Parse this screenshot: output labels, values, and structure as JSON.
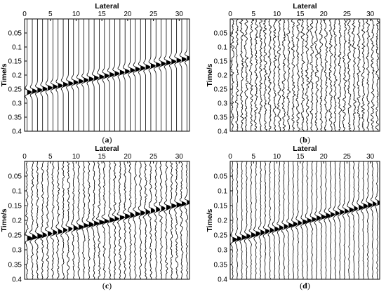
{
  "figure": {
    "panels": [
      {
        "id": "a",
        "caption_open": "(",
        "caption_letter": "a",
        "caption_close": ")"
      },
      {
        "id": "b",
        "caption_open": "(",
        "caption_letter": "b",
        "caption_close": ")"
      },
      {
        "id": "c",
        "caption_open": "(",
        "caption_letter": "c",
        "caption_close": ")"
      },
      {
        "id": "d",
        "caption_open": "(",
        "caption_letter": "d",
        "caption_close": ")"
      }
    ]
  },
  "chart_data": [
    {
      "type": "line",
      "panel": "a",
      "description_kind": "seismic wiggle trace section (clean)",
      "xlabel": "Lateral",
      "ylabel": "Time/s",
      "xlim": [
        0,
        32
      ],
      "ylim": [
        0.4,
        0.0
      ],
      "y_reversed": true,
      "x_ticks": [
        0,
        5,
        10,
        15,
        20,
        25,
        30
      ],
      "y_ticks": [
        0.05,
        0.1,
        0.15,
        0.2,
        0.25,
        0.3,
        0.35,
        0.4
      ],
      "traces": 32,
      "event": {
        "time_at_lateral_0": 0.265,
        "time_at_lateral_32": 0.14,
        "polarity_fill": "positive"
      },
      "noise_level": 0.0,
      "grid": false
    },
    {
      "type": "line",
      "panel": "b",
      "description_kind": "seismic wiggle trace section (noise)",
      "xlabel": "Lateral",
      "ylabel": "Time/s",
      "xlim": [
        0,
        32
      ],
      "ylim": [
        0.4,
        0.0
      ],
      "y_reversed": true,
      "x_ticks": [
        0,
        5,
        10,
        15,
        20,
        25,
        30
      ],
      "y_ticks": [
        0.05,
        0.1,
        0.15,
        0.2,
        0.25,
        0.3,
        0.35,
        0.4
      ],
      "traces": 32,
      "event": null,
      "noise_level": 1.0,
      "grid": false
    },
    {
      "type": "line",
      "panel": "c",
      "description_kind": "seismic wiggle trace section (noisy)",
      "xlabel": "Lateral",
      "ylabel": "Time/s",
      "xlim": [
        0,
        32
      ],
      "ylim": [
        0.4,
        0.0
      ],
      "y_reversed": true,
      "x_ticks": [
        0,
        5,
        10,
        15,
        20,
        25,
        30
      ],
      "y_ticks": [
        0.05,
        0.1,
        0.15,
        0.2,
        0.25,
        0.3,
        0.35,
        0.4
      ],
      "traces": 32,
      "event": {
        "time_at_lateral_0": 0.265,
        "time_at_lateral_32": 0.14,
        "polarity_fill": "positive"
      },
      "noise_level": 0.6,
      "grid": false
    },
    {
      "type": "line",
      "panel": "d",
      "description_kind": "seismic wiggle trace section (denoised)",
      "xlabel": "Lateral",
      "ylabel": "Time/s",
      "xlim": [
        0,
        32
      ],
      "ylim": [
        0.4,
        0.0
      ],
      "y_reversed": true,
      "x_ticks": [
        0,
        5,
        10,
        15,
        20,
        25,
        30
      ],
      "y_ticks": [
        0.05,
        0.1,
        0.15,
        0.2,
        0.25,
        0.3,
        0.35,
        0.4
      ],
      "traces": 32,
      "event": {
        "time_at_lateral_0": 0.27,
        "time_at_lateral_32": 0.14,
        "polarity_fill": "positive"
      },
      "noise_level": 0.35,
      "grid": false
    }
  ]
}
